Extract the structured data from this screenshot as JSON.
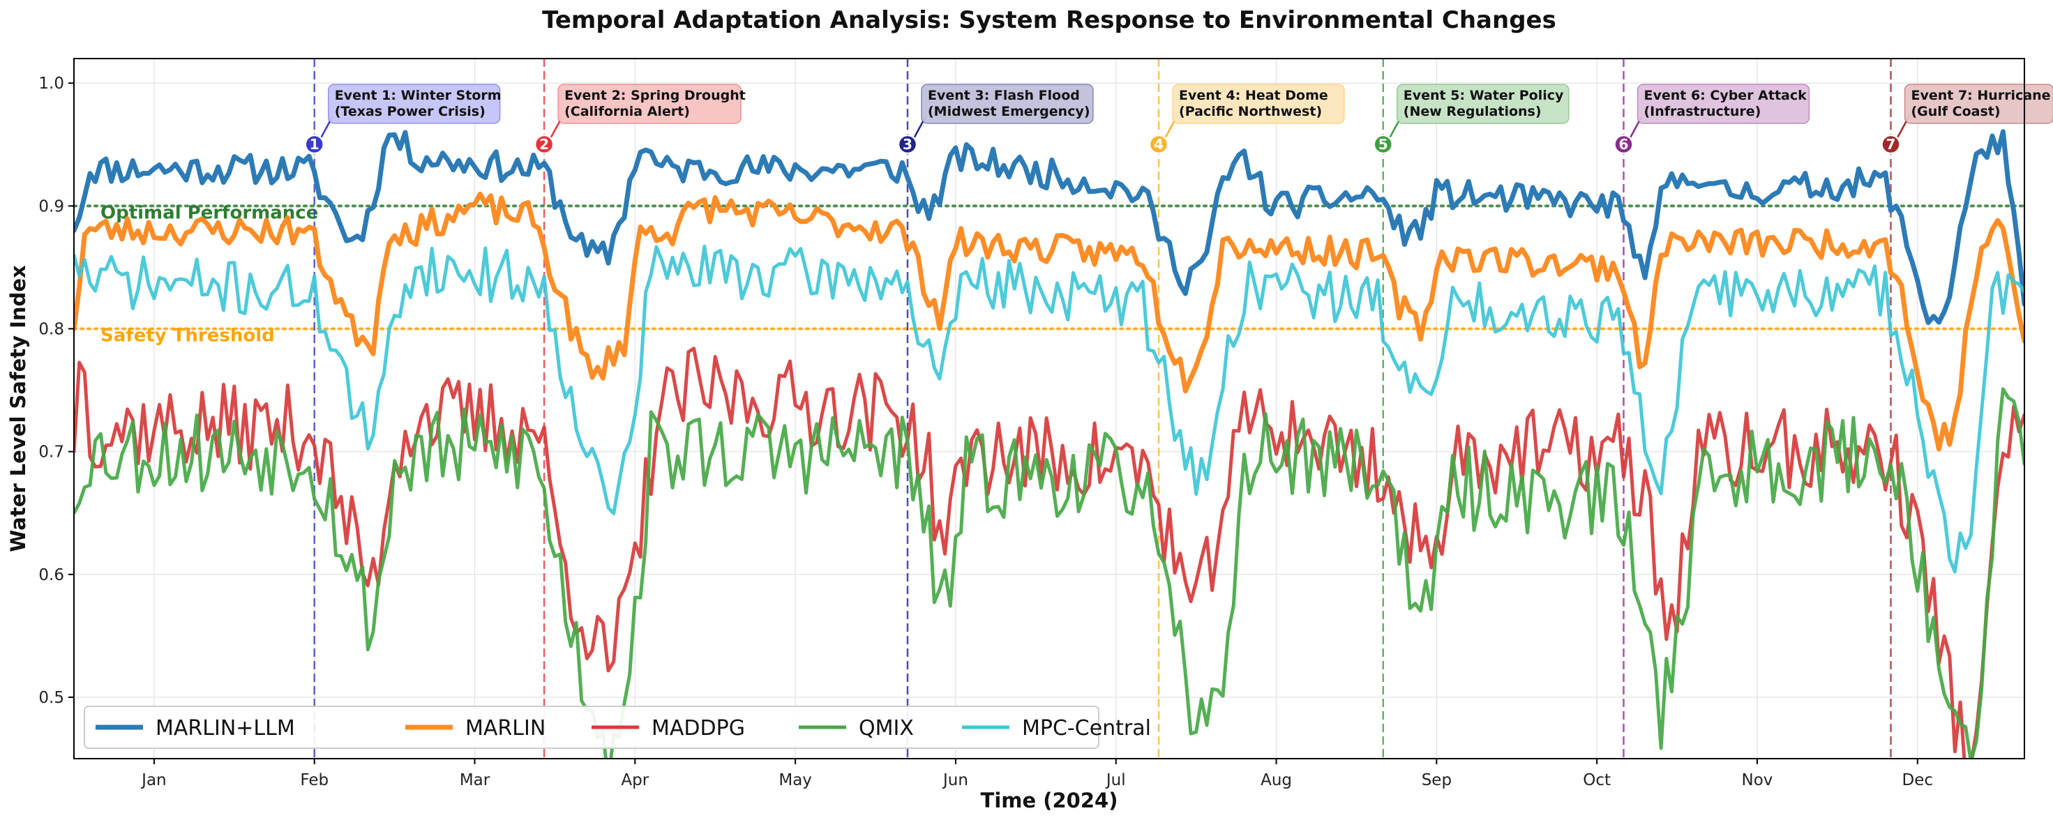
{
  "chart_data": {
    "type": "line",
    "title": "Temporal Adaptation Analysis: System Response to Environmental Changes",
    "xlabel": "Time (2024)",
    "ylabel": "Water Level Safety Index",
    "xlim": [
      0,
      365
    ],
    "ylim": [
      0.45,
      1.02
    ],
    "grid": true,
    "legend_position": "bottom-left",
    "x_ticks": [
      {
        "label": "Jan",
        "day": 15
      },
      {
        "label": "Feb",
        "day": 45
      },
      {
        "label": "Mar",
        "day": 75
      },
      {
        "label": "Apr",
        "day": 105
      },
      {
        "label": "May",
        "day": 135
      },
      {
        "label": "Jun",
        "day": 165
      },
      {
        "label": "Jul",
        "day": 195
      },
      {
        "label": "Aug",
        "day": 225
      },
      {
        "label": "Sep",
        "day": 255
      },
      {
        "label": "Oct",
        "day": 285
      },
      {
        "label": "Nov",
        "day": 315
      },
      {
        "label": "Dec",
        "day": 345
      }
    ],
    "y_ticks": [
      {
        "label": "0.5",
        "value": 0.5
      },
      {
        "label": "0.6",
        "value": 0.6
      },
      {
        "label": "0.7",
        "value": 0.7
      },
      {
        "label": "0.8",
        "value": 0.8
      },
      {
        "label": "0.9",
        "value": 0.9
      },
      {
        "label": "1.0",
        "value": 1.0
      }
    ],
    "reference_lines": [
      {
        "label": "Optimal Performance",
        "value": 0.9,
        "color": "#2e7d32"
      },
      {
        "label": "Safety Threshold",
        "value": 0.8,
        "color": "#ffa500"
      }
    ],
    "events": [
      {
        "number": "1",
        "day": 45,
        "line1": "Event 1: Winter Storm",
        "line2": "(Texas Power Crisis)",
        "color": "#3a3acf",
        "box": "#c4c4f8"
      },
      {
        "number": "2",
        "day": 88,
        "line1": "Event 2: Spring Drought",
        "line2": "(California Alert)",
        "color": "#e6333a",
        "box": "#f8c2c2"
      },
      {
        "number": "3",
        "day": 156,
        "line1": "Event 3: Flash Flood",
        "line2": "(Midwest Emergency)",
        "color": "#23238c",
        "box": "#c0c0dc"
      },
      {
        "number": "4",
        "day": 203,
        "line1": "Event 4: Heat Dome",
        "line2": "(Pacific Northwest)",
        "color": "#fbb430",
        "box": "#fde6bc"
      },
      {
        "number": "5",
        "day": 245,
        "line1": "Event 5: Water Policy",
        "line2": "(New Regulations)",
        "color": "#3d9e3d",
        "box": "#c4e2c4"
      },
      {
        "number": "6",
        "day": 290,
        "line1": "Event 6: Cyber Attack",
        "line2": "(Infrastructure)",
        "color": "#8b2b8b",
        "box": "#dec0de"
      },
      {
        "number": "7",
        "day": 340,
        "line1": "Event 7: Hurricane",
        "line2": "(Gulf Coast)",
        "color": "#a02a2a",
        "box": "#e6c3c3"
      }
    ],
    "series": [
      {
        "name": "MARLIN+LLM",
        "color": "#2c7bb6",
        "width": 7,
        "noise": 0.012,
        "seed": 11,
        "points": [
          [
            0,
            0.88
          ],
          [
            3,
            0.93
          ],
          [
            44,
            0.93
          ],
          [
            48,
            0.9
          ],
          [
            52,
            0.87
          ],
          [
            55,
            0.89
          ],
          [
            59,
            0.96
          ],
          [
            64,
            0.94
          ],
          [
            84,
            0.93
          ],
          [
            88,
            0.93
          ],
          [
            92,
            0.89
          ],
          [
            96,
            0.86
          ],
          [
            100,
            0.86
          ],
          [
            103,
            0.9
          ],
          [
            106,
            0.95
          ],
          [
            110,
            0.93
          ],
          [
            155,
            0.93
          ],
          [
            158,
            0.9
          ],
          [
            161,
            0.9
          ],
          [
            165,
            0.94
          ],
          [
            190,
            0.92
          ],
          [
            200,
            0.91
          ],
          [
            204,
            0.87
          ],
          [
            208,
            0.84
          ],
          [
            212,
            0.86
          ],
          [
            215,
            0.92
          ],
          [
            219,
            0.94
          ],
          [
            224,
            0.9
          ],
          [
            244,
            0.91
          ],
          [
            248,
            0.88
          ],
          [
            252,
            0.88
          ],
          [
            255,
            0.91
          ],
          [
            289,
            0.9
          ],
          [
            292,
            0.87
          ],
          [
            294,
            0.83
          ],
          [
            297,
            0.91
          ],
          [
            303,
            0.93
          ],
          [
            307,
            0.91
          ],
          [
            339,
            0.92
          ],
          [
            343,
            0.87
          ],
          [
            347,
            0.81
          ],
          [
            350,
            0.81
          ],
          [
            354,
            0.9
          ],
          [
            357,
            0.95
          ],
          [
            361,
            0.95
          ],
          [
            365,
            0.82
          ]
        ]
      },
      {
        "name": "MARLIN",
        "color": "#fd8d27",
        "width": 7,
        "noise": 0.012,
        "seed": 23,
        "points": [
          [
            0,
            0.8
          ],
          [
            2,
            0.88
          ],
          [
            44,
            0.88
          ],
          [
            48,
            0.84
          ],
          [
            52,
            0.8
          ],
          [
            56,
            0.79
          ],
          [
            59,
            0.88
          ],
          [
            64,
            0.88
          ],
          [
            75,
            0.9
          ],
          [
            86,
            0.89
          ],
          [
            90,
            0.84
          ],
          [
            94,
            0.79
          ],
          [
            97,
            0.76
          ],
          [
            103,
            0.79
          ],
          [
            106,
            0.88
          ],
          [
            112,
            0.88
          ],
          [
            117,
            0.9
          ],
          [
            155,
            0.88
          ],
          [
            159,
            0.84
          ],
          [
            162,
            0.81
          ],
          [
            165,
            0.87
          ],
          [
            200,
            0.86
          ],
          [
            204,
            0.8
          ],
          [
            208,
            0.76
          ],
          [
            212,
            0.8
          ],
          [
            215,
            0.87
          ],
          [
            244,
            0.86
          ],
          [
            248,
            0.82
          ],
          [
            252,
            0.8
          ],
          [
            256,
            0.86
          ],
          [
            289,
            0.85
          ],
          [
            292,
            0.8
          ],
          [
            294,
            0.76
          ],
          [
            297,
            0.87
          ],
          [
            339,
            0.87
          ],
          [
            342,
            0.83
          ],
          [
            345,
            0.76
          ],
          [
            349,
            0.71
          ],
          [
            352,
            0.72
          ],
          [
            354,
            0.79
          ],
          [
            357,
            0.87
          ],
          [
            361,
            0.88
          ],
          [
            365,
            0.79
          ]
        ]
      },
      {
        "name": "MADDPG",
        "color": "#d73a3a",
        "width": 5,
        "noise": 0.035,
        "seed": 37,
        "points": [
          [
            0,
            0.7
          ],
          [
            1,
            0.79
          ],
          [
            3,
            0.72
          ],
          [
            44,
            0.72
          ],
          [
            48,
            0.68
          ],
          [
            52,
            0.63
          ],
          [
            56,
            0.59
          ],
          [
            60,
            0.7
          ],
          [
            64,
            0.73
          ],
          [
            87,
            0.72
          ],
          [
            91,
            0.62
          ],
          [
            95,
            0.57
          ],
          [
            100,
            0.52
          ],
          [
            105,
            0.6
          ],
          [
            109,
            0.73
          ],
          [
            115,
            0.75
          ],
          [
            155,
            0.73
          ],
          [
            159,
            0.7
          ],
          [
            163,
            0.62
          ],
          [
            167,
            0.7
          ],
          [
            200,
            0.69
          ],
          [
            205,
            0.63
          ],
          [
            210,
            0.56
          ],
          [
            215,
            0.66
          ],
          [
            220,
            0.73
          ],
          [
            244,
            0.69
          ],
          [
            249,
            0.64
          ],
          [
            254,
            0.6
          ],
          [
            258,
            0.7
          ],
          [
            289,
            0.7
          ],
          [
            294,
            0.66
          ],
          [
            299,
            0.55
          ],
          [
            304,
            0.7
          ],
          [
            339,
            0.7
          ],
          [
            344,
            0.65
          ],
          [
            349,
            0.55
          ],
          [
            354,
            0.45
          ],
          [
            357,
            0.5
          ],
          [
            361,
            0.7
          ],
          [
            365,
            0.73
          ]
        ]
      },
      {
        "name": "QMIX",
        "color": "#45a845",
        "width": 5,
        "noise": 0.035,
        "seed": 53,
        "points": [
          [
            0,
            0.65
          ],
          [
            2,
            0.7
          ],
          [
            44,
            0.7
          ],
          [
            48,
            0.66
          ],
          [
            52,
            0.6
          ],
          [
            56,
            0.56
          ],
          [
            60,
            0.68
          ],
          [
            64,
            0.7
          ],
          [
            86,
            0.7
          ],
          [
            91,
            0.6
          ],
          [
            95,
            0.52
          ],
          [
            100,
            0.46
          ],
          [
            104,
            0.52
          ],
          [
            108,
            0.7
          ],
          [
            155,
            0.7
          ],
          [
            158,
            0.66
          ],
          [
            163,
            0.57
          ],
          [
            167,
            0.68
          ],
          [
            200,
            0.68
          ],
          [
            204,
            0.58
          ],
          [
            208,
            0.51
          ],
          [
            212,
            0.46
          ],
          [
            216,
            0.56
          ],
          [
            220,
            0.7
          ],
          [
            244,
            0.69
          ],
          [
            249,
            0.62
          ],
          [
            253,
            0.56
          ],
          [
            258,
            0.67
          ],
          [
            289,
            0.66
          ],
          [
            293,
            0.58
          ],
          [
            297,
            0.49
          ],
          [
            301,
            0.58
          ],
          [
            305,
            0.68
          ],
          [
            339,
            0.7
          ],
          [
            344,
            0.64
          ],
          [
            348,
            0.56
          ],
          [
            352,
            0.46
          ],
          [
            356,
            0.45
          ],
          [
            359,
            0.64
          ],
          [
            361,
            0.74
          ],
          [
            365,
            0.69
          ]
        ]
      },
      {
        "name": "MPC-Central",
        "color": "#3ec6d6",
        "width": 5,
        "noise": 0.022,
        "seed": 71,
        "points": [
          [
            0,
            0.86
          ],
          [
            3,
            0.84
          ],
          [
            44,
            0.83
          ],
          [
            48,
            0.8
          ],
          [
            52,
            0.74
          ],
          [
            56,
            0.7
          ],
          [
            60,
            0.82
          ],
          [
            64,
            0.85
          ],
          [
            87,
            0.84
          ],
          [
            91,
            0.78
          ],
          [
            95,
            0.72
          ],
          [
            100,
            0.65
          ],
          [
            104,
            0.7
          ],
          [
            108,
            0.85
          ],
          [
            155,
            0.84
          ],
          [
            159,
            0.79
          ],
          [
            162,
            0.74
          ],
          [
            166,
            0.84
          ],
          [
            200,
            0.82
          ],
          [
            204,
            0.76
          ],
          [
            208,
            0.7
          ],
          [
            212,
            0.67
          ],
          [
            216,
            0.78
          ],
          [
            220,
            0.84
          ],
          [
            244,
            0.82
          ],
          [
            249,
            0.77
          ],
          [
            253,
            0.73
          ],
          [
            258,
            0.82
          ],
          [
            289,
            0.81
          ],
          [
            293,
            0.74
          ],
          [
            297,
            0.66
          ],
          [
            301,
            0.78
          ],
          [
            305,
            0.83
          ],
          [
            339,
            0.83
          ],
          [
            344,
            0.76
          ],
          [
            348,
            0.68
          ],
          [
            352,
            0.6
          ],
          [
            355,
            0.64
          ],
          [
            359,
            0.83
          ],
          [
            365,
            0.83
          ]
        ]
      }
    ]
  }
}
